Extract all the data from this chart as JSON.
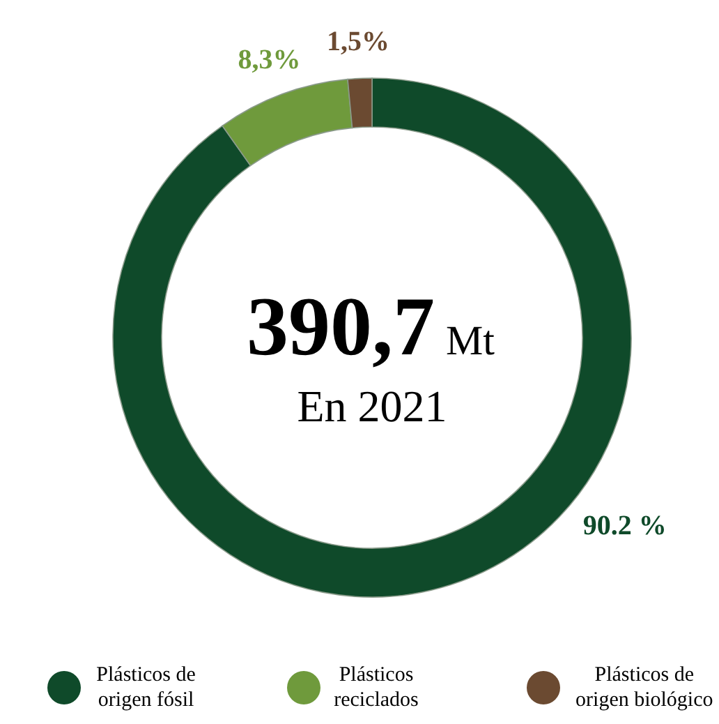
{
  "chart_data": {
    "type": "donut",
    "categories": [
      "Plásticos de origen fósil",
      "Plásticos reciclados",
      "Plásticos de origen biológico"
    ],
    "values": [
      90.2,
      8.3,
      1.5
    ],
    "colors": [
      "#0f4a2a",
      "#6f9a3c",
      "#6b4a31"
    ],
    "value_labels": [
      "90.2 %",
      "8,3%",
      "1,5%"
    ],
    "annotations": [
      "390,7",
      "Mt",
      "En 2021"
    ],
    "legend": "bottom"
  }
}
